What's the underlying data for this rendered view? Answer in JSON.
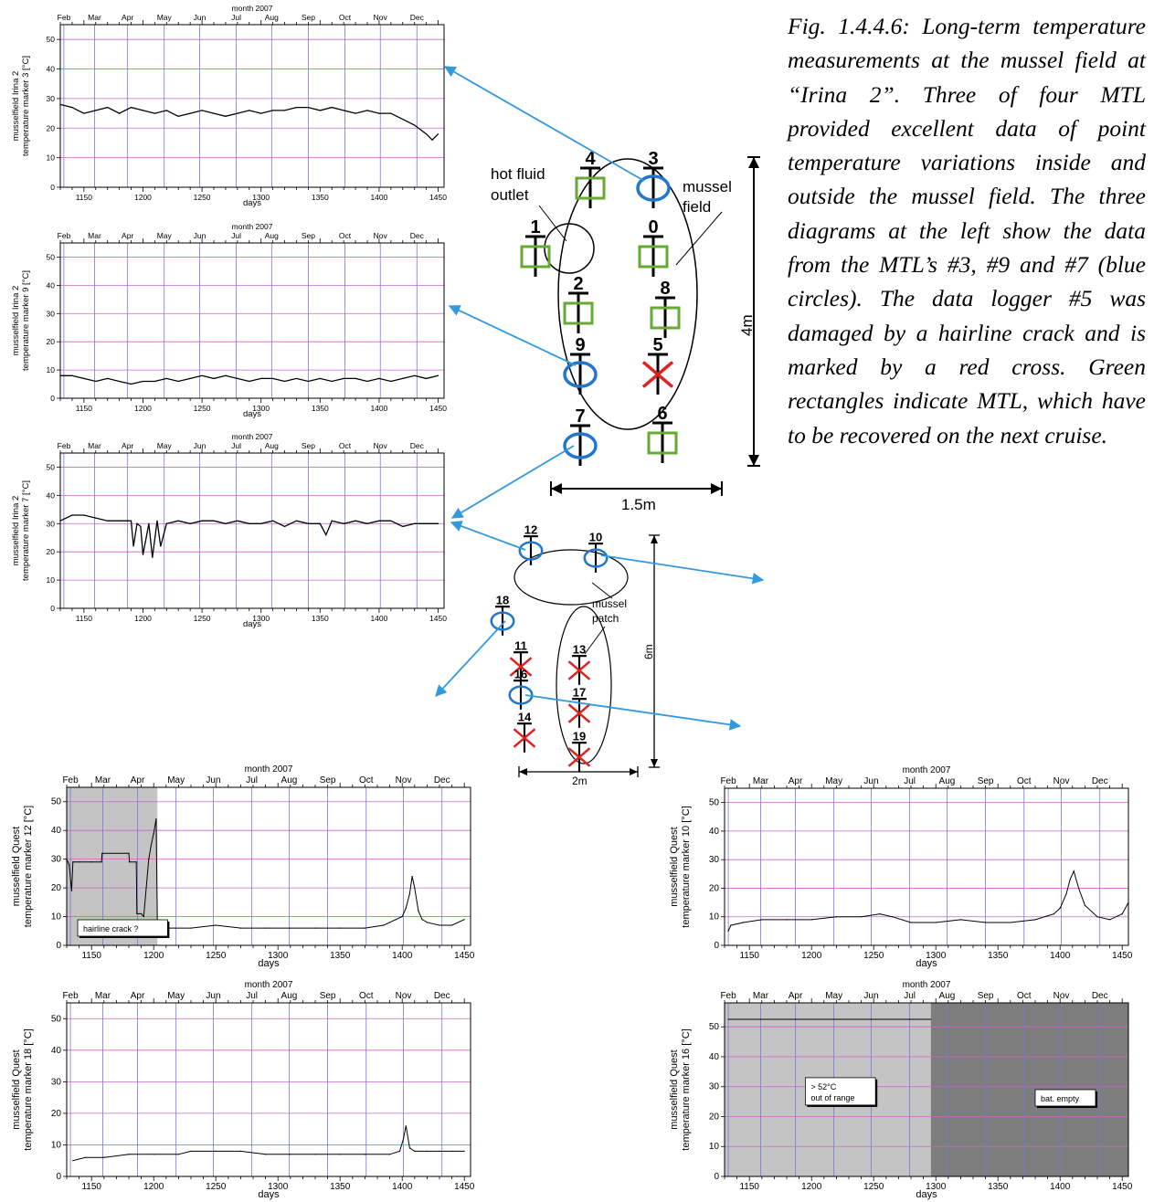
{
  "caption": "Fig. 1.4.4.6: Long-term tem­perature measurements at the mussel field at “Irina 2”. Three of four MTL provided excellent data of point temperature variations inside and outside the mussel field. The three diagrams at the left show the data from the MTL’s #3, #9 and #7 (blue circles). The data logger #5 was damaged by a hairline crack and is marked by a red cross. Green rectangles indicate MTL, which have to be recovered on the next cruise.",
  "irina_map": {
    "hot_fluid_outlet": [
      "hot fluid",
      "outlet"
    ],
    "mussel_field": [
      "mussel",
      "field"
    ],
    "scale_width": "1.5m",
    "scale_height": "4m",
    "markers": [
      {
        "id": "4",
        "type": "green"
      },
      {
        "id": "3",
        "type": "blue"
      },
      {
        "id": "1",
        "type": "green"
      },
      {
        "id": "0",
        "type": "green"
      },
      {
        "id": "2",
        "type": "green"
      },
      {
        "id": "8",
        "type": "green"
      },
      {
        "id": "9",
        "type": "blue"
      },
      {
        "id": "5",
        "type": "red"
      },
      {
        "id": "7",
        "type": "blue"
      },
      {
        "id": "6",
        "type": "green"
      }
    ]
  },
  "quest_map": {
    "mussel_patch": [
      "mussel",
      "patch"
    ],
    "scale_width": "2m",
    "scale_height": "6m",
    "markers": [
      {
        "id": "12",
        "type": "blue"
      },
      {
        "id": "10",
        "type": "blue"
      },
      {
        "id": "18",
        "type": "blue"
      },
      {
        "id": "11",
        "type": "red"
      },
      {
        "id": "13",
        "type": "red"
      },
      {
        "id": "16",
        "type": "blue"
      },
      {
        "id": "17",
        "type": "red"
      },
      {
        "id": "14",
        "type": "red"
      },
      {
        "id": "19",
        "type": "red"
      }
    ]
  },
  "colors": {
    "grid_h": "#cc66cc",
    "grid_v": "#7777dd",
    "arrow": "#3399dd",
    "blue": "#2277cc",
    "green": "#66aa33",
    "red": "#dd2222"
  },
  "chart_data": [
    {
      "type": "line",
      "months_title": "month 2007",
      "months": [
        "Feb",
        "Mar",
        "Apr",
        "May",
        "Jun",
        "Jul",
        "Aug",
        "Sep",
        "Oct",
        "Nov",
        "Dec"
      ],
      "xlabel": "days",
      "ylabel": [
        "musselfield  Irina 2",
        "temperature marker 3 [°C]"
      ],
      "xlim": [
        1130,
        1455
      ],
      "ylim": [
        0,
        55
      ],
      "xticks": [
        1150,
        1200,
        1250,
        1300,
        1350,
        1400,
        1450
      ],
      "yticks": [
        0,
        10,
        20,
        30,
        40,
        50
      ],
      "series": [
        {
          "x": [
            1130,
            1140,
            1145,
            1150,
            1160,
            1170,
            1180,
            1190,
            1200,
            1210,
            1220,
            1230,
            1240,
            1250,
            1260,
            1270,
            1280,
            1290,
            1300,
            1310,
            1320,
            1330,
            1340,
            1350,
            1360,
            1370,
            1380,
            1390,
            1400,
            1410,
            1420,
            1430,
            1440,
            1445,
            1450
          ],
          "y": [
            28,
            27,
            26,
            25,
            26,
            27,
            25,
            27,
            26,
            25,
            26,
            24,
            25,
            26,
            25,
            24,
            25,
            26,
            25,
            26,
            26,
            27,
            27,
            26,
            27,
            26,
            25,
            26,
            25,
            25,
            23,
            21,
            18,
            16,
            18
          ]
        }
      ]
    },
    {
      "type": "line",
      "months_title": "month 2007",
      "months": [
        "Feb",
        "Mar",
        "Apr",
        "May",
        "Jun",
        "Jul",
        "Aug",
        "Sep",
        "Oct",
        "Nov",
        "Dec"
      ],
      "xlabel": "days",
      "ylabel": [
        "musselfield  Irina 2",
        "temperature marker 9 [°C]"
      ],
      "xlim": [
        1130,
        1455
      ],
      "ylim": [
        0,
        55
      ],
      "xticks": [
        1150,
        1200,
        1250,
        1300,
        1350,
        1400,
        1450
      ],
      "yticks": [
        0,
        10,
        20,
        30,
        40,
        50
      ],
      "series": [
        {
          "x": [
            1130,
            1140,
            1150,
            1160,
            1170,
            1180,
            1190,
            1200,
            1210,
            1220,
            1230,
            1240,
            1250,
            1260,
            1270,
            1280,
            1290,
            1300,
            1310,
            1320,
            1330,
            1340,
            1350,
            1360,
            1370,
            1380,
            1390,
            1400,
            1410,
            1420,
            1430,
            1440,
            1450
          ],
          "y": [
            8,
            8,
            7,
            6,
            7,
            6,
            5,
            6,
            6,
            7,
            6,
            7,
            8,
            7,
            8,
            7,
            6,
            7,
            7,
            6,
            7,
            6,
            7,
            6,
            7,
            7,
            6,
            7,
            6,
            7,
            8,
            7,
            8
          ]
        }
      ]
    },
    {
      "type": "line",
      "months_title": "month 2007",
      "months": [
        "Feb",
        "Mar",
        "Apr",
        "May",
        "Jun",
        "Jul",
        "Aug",
        "Sep",
        "Oct",
        "Nov",
        "Dec"
      ],
      "xlabel": "days",
      "ylabel": [
        "musselfield  Irina 2",
        "temperature marker 7 [°C]"
      ],
      "xlim": [
        1130,
        1455
      ],
      "ylim": [
        0,
        55
      ],
      "xticks": [
        1150,
        1200,
        1250,
        1300,
        1350,
        1400,
        1450
      ],
      "yticks": [
        0,
        10,
        20,
        30,
        40,
        50
      ],
      "series": [
        {
          "x": [
            1130,
            1140,
            1150,
            1160,
            1170,
            1180,
            1190,
            1192,
            1195,
            1198,
            1200,
            1205,
            1208,
            1212,
            1215,
            1220,
            1230,
            1240,
            1250,
            1260,
            1270,
            1280,
            1290,
            1300,
            1310,
            1320,
            1330,
            1340,
            1350,
            1355,
            1360,
            1370,
            1380,
            1390,
            1400,
            1410,
            1420,
            1430,
            1440,
            1450
          ],
          "y": [
            31,
            33,
            33,
            32,
            31,
            31,
            31,
            22,
            30,
            29,
            19,
            30,
            18,
            31,
            22,
            30,
            31,
            30,
            31,
            31,
            30,
            31,
            30,
            30,
            31,
            29,
            31,
            30,
            30,
            26,
            31,
            30,
            31,
            30,
            31,
            31,
            29,
            30,
            30,
            30
          ]
        }
      ]
    },
    {
      "type": "line",
      "months_title": "month 2007",
      "months": [
        "Feb",
        "Mar",
        "Apr",
        "May",
        "Jun",
        "Jul",
        "Aug",
        "Sep",
        "Oct",
        "Nov",
        "Dec"
      ],
      "xlabel": "days",
      "ylabel": [
        "musselfield  Quest",
        "temperature marker 12 [°C]"
      ],
      "xlim": [
        1130,
        1455
      ],
      "ylim": [
        0,
        55
      ],
      "xticks": [
        1150,
        1200,
        1250,
        1300,
        1350,
        1400,
        1450
      ],
      "yticks": [
        0,
        10,
        20,
        30,
        40,
        50
      ],
      "shaded": [
        {
          "from": 1130,
          "to": 1203,
          "label": "hairline crack ?",
          "tone": "light"
        }
      ],
      "series": [
        {
          "x": [
            1130,
            1132,
            1134,
            1135,
            1140,
            1150,
            1158,
            1158.5,
            1180,
            1180.5,
            1186,
            1186.5,
            1190,
            1192,
            1196,
            1198,
            1200,
            1202,
            1203,
            1210,
            1230,
            1250,
            1270,
            1290,
            1310,
            1330,
            1350,
            1370,
            1385,
            1395,
            1400,
            1403,
            1406,
            1408,
            1410,
            1413,
            1416,
            1420,
            1430,
            1440,
            1450
          ],
          "y": [
            30,
            28,
            19,
            29,
            29,
            29,
            29,
            32,
            32,
            29,
            29,
            11,
            11,
            10,
            30,
            35,
            39,
            44,
            6,
            6,
            6,
            7,
            6,
            6,
            6,
            6,
            6,
            6,
            7,
            9,
            10,
            13,
            18,
            24,
            20,
            12,
            9,
            8,
            7,
            7,
            9
          ]
        }
      ]
    },
    {
      "type": "line",
      "months_title": "month 2007",
      "months": [
        "Feb",
        "Mar",
        "Apr",
        "May",
        "Jun",
        "Jul",
        "Aug",
        "Sep",
        "Oct",
        "Nov",
        "Dec"
      ],
      "xlabel": "days",
      "ylabel": [
        "musselfield  Quest",
        "temperature marker 10 [°C]"
      ],
      "xlim": [
        1130,
        1455
      ],
      "ylim": [
        0,
        55
      ],
      "xticks": [
        1150,
        1200,
        1250,
        1300,
        1350,
        1400,
        1450
      ],
      "yticks": [
        0,
        10,
        20,
        30,
        40,
        50
      ],
      "series": [
        {
          "x": [
            1133,
            1135,
            1145,
            1160,
            1180,
            1200,
            1220,
            1240,
            1255,
            1265,
            1280,
            1300,
            1320,
            1340,
            1360,
            1380,
            1395,
            1400,
            1405,
            1408,
            1411,
            1415,
            1420,
            1430,
            1440,
            1450,
            1455
          ],
          "y": [
            5,
            7,
            8,
            9,
            9,
            9,
            10,
            10,
            11,
            10,
            8,
            8,
            9,
            8,
            8,
            9,
            11,
            13,
            18,
            23,
            26,
            20,
            14,
            10,
            9,
            11,
            15
          ]
        }
      ]
    },
    {
      "type": "line",
      "months_title": "month 2007",
      "months": [
        "Feb",
        "Mar",
        "Apr",
        "May",
        "Jun",
        "Jul",
        "Aug",
        "Sep",
        "Oct",
        "Nov",
        "Dec"
      ],
      "xlabel": "days",
      "ylabel": [
        "musselfield  Quest",
        "temperature marker 18 [°C]"
      ],
      "xlim": [
        1130,
        1455
      ],
      "ylim": [
        0,
        55
      ],
      "xticks": [
        1150,
        1200,
        1250,
        1300,
        1350,
        1400,
        1450
      ],
      "yticks": [
        0,
        10,
        20,
        30,
        40,
        50
      ],
      "series": [
        {
          "x": [
            1135,
            1145,
            1160,
            1180,
            1200,
            1220,
            1230,
            1250,
            1270,
            1290,
            1310,
            1330,
            1350,
            1370,
            1390,
            1398,
            1401,
            1403,
            1406,
            1410,
            1420,
            1430,
            1440,
            1450
          ],
          "y": [
            5,
            6,
            6,
            7,
            7,
            7,
            8,
            8,
            8,
            7,
            7,
            7,
            7,
            7,
            7,
            8,
            12,
            16,
            9,
            8,
            8,
            8,
            8,
            8
          ]
        }
      ]
    },
    {
      "type": "line",
      "months_title": "month 2007",
      "months": [
        "Feb",
        "Mar",
        "Apr",
        "May",
        "Jun",
        "Jul",
        "Aug",
        "Sep",
        "Oct",
        "Nov",
        "Dec"
      ],
      "xlabel": "days",
      "ylabel": [
        "musselfield  Quest",
        "temperature marker 16 [°C]"
      ],
      "xlim": [
        1130,
        1455
      ],
      "ylim": [
        0,
        58
      ],
      "xticks": [
        1150,
        1200,
        1250,
        1300,
        1350,
        1400,
        1450
      ],
      "yticks": [
        0,
        10,
        20,
        30,
        40,
        50
      ],
      "shaded": [
        {
          "from": 1130,
          "to": 1296,
          "label": "> 52°C\nout of range",
          "tone": "light"
        },
        {
          "from": 1296,
          "to": 1455,
          "label": "bat. empty",
          "tone": "dark"
        }
      ],
      "series": [
        {
          "x": [
            1133,
            1296
          ],
          "y": [
            52.5,
            52.5
          ]
        }
      ]
    }
  ]
}
